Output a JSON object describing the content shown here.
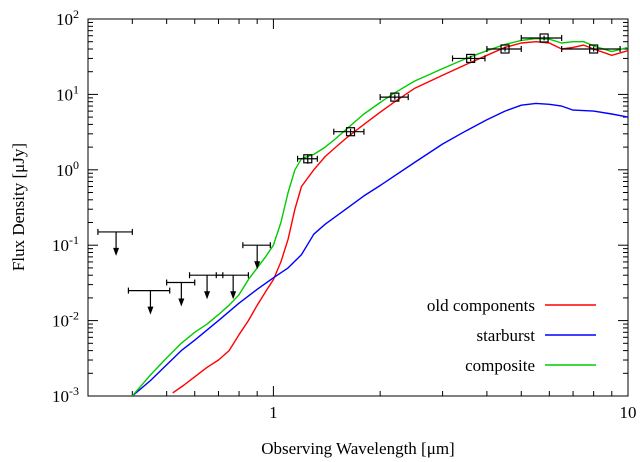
{
  "chart_data": {
    "type": "line",
    "xlabel": "Observing Wavelength [μm]",
    "ylabel": "Flux Density [μJy]",
    "xscale": "log",
    "yscale": "log",
    "xlim": [
      0.3,
      10
    ],
    "ylim": [
      0.001,
      100
    ],
    "grid": false,
    "legend_position": "bottom-right",
    "x_ticks": [
      {
        "value": 1,
        "label": "1"
      },
      {
        "value": 10,
        "label": "10"
      }
    ],
    "y_ticks": [
      {
        "value": 0.001,
        "base": "10",
        "exp": "-3"
      },
      {
        "value": 0.01,
        "base": "10",
        "exp": "-2"
      },
      {
        "value": 0.1,
        "base": "10",
        "exp": "-1"
      },
      {
        "value": 1,
        "base": "10",
        "exp": "0"
      },
      {
        "value": 10,
        "base": "10",
        "exp": "1"
      },
      {
        "value": 100,
        "base": "10",
        "exp": "2"
      }
    ],
    "series": [
      {
        "name": "old components",
        "color": "#ff0000",
        "x": [
          0.52,
          0.56,
          0.6,
          0.65,
          0.7,
          0.75,
          0.8,
          0.85,
          0.9,
          0.95,
          1.0,
          1.05,
          1.1,
          1.15,
          1.2,
          1.3,
          1.4,
          1.5,
          1.6,
          1.8,
          2.0,
          2.2,
          2.5,
          3.0,
          3.5,
          4.0,
          4.5,
          5.0,
          5.5,
          6.0,
          6.5,
          7.0,
          7.5,
          8.0,
          9.0,
          10.0
        ],
        "y": [
          0.0011,
          0.0014,
          0.0018,
          0.0024,
          0.003,
          0.004,
          0.0065,
          0.01,
          0.016,
          0.024,
          0.035,
          0.06,
          0.12,
          0.3,
          0.6,
          1.0,
          1.5,
          2.0,
          2.6,
          4.0,
          5.8,
          8.0,
          12.0,
          18.0,
          25.0,
          33.0,
          42.0,
          48.0,
          50.0,
          48.0,
          40.0,
          42.0,
          45.0,
          40.0,
          33.0,
          38.0
        ]
      },
      {
        "name": "starburst",
        "color": "#0000ff",
        "x": [
          0.4,
          0.45,
          0.5,
          0.55,
          0.6,
          0.7,
          0.8,
          0.9,
          1.0,
          1.1,
          1.2,
          1.3,
          1.4,
          1.6,
          1.8,
          2.0,
          2.5,
          3.0,
          3.5,
          4.0,
          4.5,
          5.0,
          5.5,
          6.0,
          6.5,
          7.0,
          8.0,
          9.0,
          10.0
        ],
        "y": [
          0.001,
          0.0016,
          0.0026,
          0.004,
          0.0055,
          0.01,
          0.017,
          0.026,
          0.037,
          0.05,
          0.075,
          0.14,
          0.19,
          0.3,
          0.45,
          0.62,
          1.25,
          2.2,
          3.3,
          4.6,
          6.0,
          7.2,
          7.6,
          7.4,
          7.0,
          6.2,
          6.0,
          5.5,
          5.0
        ]
      },
      {
        "name": "composite",
        "color": "#00cc00",
        "x": [
          0.4,
          0.45,
          0.5,
          0.55,
          0.6,
          0.65,
          0.7,
          0.75,
          0.8,
          0.85,
          0.9,
          0.95,
          1.0,
          1.05,
          1.1,
          1.15,
          1.2,
          1.3,
          1.4,
          1.5,
          1.6,
          1.8,
          2.0,
          2.2,
          2.5,
          3.0,
          3.5,
          4.0,
          4.5,
          5.0,
          5.5,
          6.0,
          6.5,
          7.0,
          7.5,
          8.0,
          9.0,
          10.0
        ],
        "y": [
          0.001,
          0.0019,
          0.0032,
          0.005,
          0.007,
          0.009,
          0.012,
          0.016,
          0.022,
          0.035,
          0.05,
          0.07,
          0.1,
          0.2,
          0.5,
          1.0,
          1.4,
          1.6,
          2.0,
          2.6,
          3.4,
          5.5,
          7.8,
          10.5,
          15.0,
          22.0,
          30.0,
          38.0,
          46.0,
          52.0,
          55.0,
          54.0,
          48.0,
          50.0,
          50.0,
          44.0,
          37.0,
          42.0
        ]
      }
    ],
    "detections": [
      {
        "x": 1.25,
        "y": 1.4,
        "xerr": [
          1.17,
          1.33
        ],
        "yerr": [
          1.2,
          1.6
        ]
      },
      {
        "x": 1.65,
        "y": 3.2,
        "xerr": [
          1.48,
          1.8
        ],
        "yerr": [
          2.9,
          3.5
        ]
      },
      {
        "x": 2.2,
        "y": 9.2,
        "xerr": [
          2.0,
          2.4
        ],
        "yerr": [
          8.5,
          10.0
        ]
      },
      {
        "x": 3.6,
        "y": 30.0,
        "xerr": [
          3.2,
          3.95
        ],
        "yerr": [
          27.5,
          32.5
        ]
      },
      {
        "x": 4.5,
        "y": 40.0,
        "xerr": [
          4.0,
          5.0
        ],
        "yerr": [
          37.0,
          43.0
        ]
      },
      {
        "x": 5.8,
        "y": 56.0,
        "xerr": [
          5.0,
          6.5
        ],
        "yerr": [
          52.0,
          60.0
        ]
      },
      {
        "x": 8.0,
        "y": 40.0,
        "xerr": [
          6.5,
          9.5
        ],
        "yerr": [
          37.0,
          43.0
        ]
      }
    ],
    "upper_limits": [
      {
        "x": 0.36,
        "y": 0.15,
        "xerr": [
          0.32,
          0.4
        ]
      },
      {
        "x": 0.45,
        "y": 0.025,
        "xerr": [
          0.39,
          0.51
        ]
      },
      {
        "x": 0.55,
        "y": 0.032,
        "xerr": [
          0.5,
          0.6
        ]
      },
      {
        "x": 0.65,
        "y": 0.04,
        "xerr": [
          0.58,
          0.72
        ]
      },
      {
        "x": 0.77,
        "y": 0.04,
        "xerr": [
          0.69,
          0.85
        ]
      },
      {
        "x": 0.9,
        "y": 0.1,
        "xerr": [
          0.82,
          0.98
        ]
      }
    ]
  }
}
